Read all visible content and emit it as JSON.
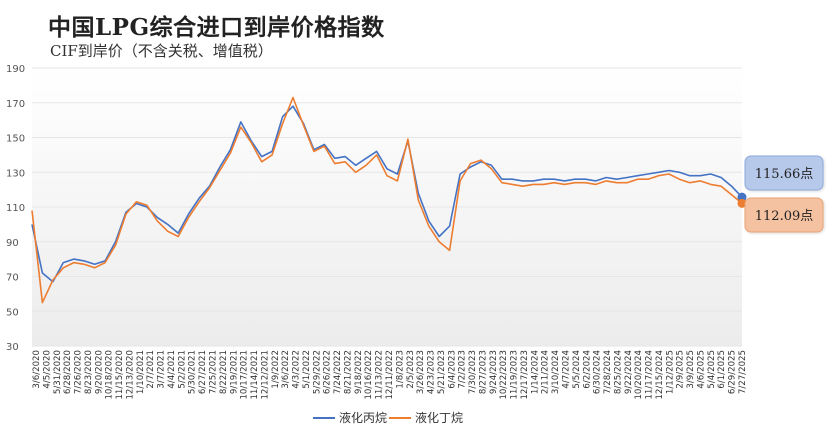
{
  "title": "中国LPG综合进口到岸价格指数",
  "subtitle": "CIF到岸价（不含关税、增值税）",
  "colors": {
    "propane": "#4472c4",
    "butane": "#ed7d31",
    "grid": "#e6e6e6",
    "plot_bg_top": "#ffffff",
    "plot_bg_bottom": "#eeeeee"
  },
  "chart_data": {
    "type": "line",
    "ylim": [
      30,
      190
    ],
    "yticks": [
      30,
      50,
      70,
      90,
      110,
      130,
      150,
      170,
      190
    ],
    "x_tick_labels": [
      "3/6/2020",
      "4/5/2020",
      "5/31/2020",
      "6/28/2020",
      "7/26/2020",
      "8/23/2020",
      "9/20/2020",
      "10/18/2020",
      "11/15/2020",
      "12/13/2020",
      "1/10/2021",
      "2/7/2021",
      "3/7/2021",
      "4/4/2021",
      "5/2/2021",
      "5/30/2021",
      "6/27/2021",
      "7/25/2021",
      "8/22/2021",
      "9/19/2021",
      "10/17/2021",
      "11/14/2021",
      "12/12/2021",
      "1/9/2022",
      "3/6/2022",
      "4/3/2022",
      "5/1/2022",
      "5/29/2022",
      "6/26/2022",
      "7/24/2022",
      "8/21/2022",
      "9/18/2022",
      "10/16/2022",
      "11/13/2022",
      "12/11/2022",
      "1/8/2023",
      "2/5/2023",
      "3/26/2023",
      "4/23/2023",
      "5/21/2023",
      "6/4/2023",
      "7/2/2023",
      "7/30/2023",
      "8/27/2023",
      "9/24/2023",
      "10/22/2023",
      "11/19/2023",
      "12/17/2023",
      "1/14/2024",
      "2/11/2024",
      "3/10/2024",
      "4/7/2024",
      "5/5/2024",
      "6/2/2024",
      "6/30/2024",
      "7/28/2024",
      "8/25/2024",
      "9/22/2024",
      "10/20/2024",
      "11/17/2024",
      "12/15/2024",
      "1/12/2025",
      "2/9/2025",
      "3/9/2025",
      "4/6/2025",
      "5/4/2025",
      "6/1/2025",
      "6/29/2025",
      "7/27/2025"
    ],
    "series": [
      {
        "name": "液化丙烷",
        "color": "#4472c4",
        "x": [
          0,
          1,
          2,
          3,
          4,
          5,
          6,
          7,
          8,
          9,
          10,
          11,
          12,
          13,
          14,
          15,
          16,
          17,
          18,
          19,
          20,
          21,
          22,
          23,
          24,
          25,
          26,
          27,
          28,
          29,
          30,
          31,
          32,
          33,
          34,
          35,
          36,
          37,
          38,
          39,
          40,
          41,
          42,
          43,
          44,
          45,
          46,
          47,
          48,
          49,
          50,
          51,
          52,
          53,
          54,
          55,
          56,
          57,
          58,
          59,
          60,
          61,
          62,
          63,
          64,
          65,
          66,
          67,
          68
        ],
        "values": [
          100,
          72,
          67,
          78,
          80,
          79,
          77,
          79,
          90,
          107,
          112,
          110,
          104,
          100,
          95,
          106,
          115,
          122,
          133,
          143,
          159,
          148,
          139,
          142,
          162,
          168,
          158,
          143,
          146,
          138,
          139,
          134,
          138,
          142,
          132,
          129,
          148,
          118,
          102,
          93,
          99,
          129,
          133,
          136,
          134,
          126,
          126,
          125,
          125,
          126,
          126,
          125,
          126,
          126,
          125,
          127,
          126,
          127,
          128,
          129,
          130,
          131,
          130,
          128,
          128,
          129,
          127,
          122,
          115.66
        ]
      },
      {
        "name": "液化丁烷",
        "color": "#ed7d31",
        "x": [
          0,
          1,
          2,
          3,
          4,
          5,
          6,
          7,
          8,
          9,
          10,
          11,
          12,
          13,
          14,
          15,
          16,
          17,
          18,
          19,
          20,
          21,
          22,
          23,
          24,
          25,
          26,
          27,
          28,
          29,
          30,
          31,
          32,
          33,
          34,
          35,
          36,
          37,
          38,
          39,
          40,
          41,
          42,
          43,
          44,
          45,
          46,
          47,
          48,
          49,
          50,
          51,
          52,
          53,
          54,
          55,
          56,
          57,
          58,
          59,
          60,
          61,
          62,
          63,
          64,
          65,
          66,
          67,
          68
        ],
        "values": [
          108,
          55,
          68,
          75,
          78,
          77,
          75,
          78,
          88,
          106,
          113,
          111,
          102,
          96,
          93,
          104,
          113,
          121,
          131,
          141,
          156,
          147,
          136,
          140,
          158,
          173,
          157,
          142,
          145,
          135,
          136,
          130,
          134,
          140,
          128,
          125,
          149,
          114,
          99,
          90,
          85,
          125,
          135,
          137,
          132,
          124,
          123,
          122,
          123,
          123,
          124,
          123,
          124,
          124,
          123,
          125,
          124,
          124,
          126,
          126,
          128,
          129,
          126,
          124,
          125,
          123,
          122,
          117,
          112.09
        ]
      }
    ],
    "callouts": [
      {
        "series": "液化丙烷",
        "text": "115.66点"
      },
      {
        "series": "液化丁烷",
        "text": "112.09点"
      }
    ],
    "legend": [
      "液化丙烷",
      "液化丁烷"
    ],
    "legend_position": "bottom",
    "grid": "horizontal"
  }
}
